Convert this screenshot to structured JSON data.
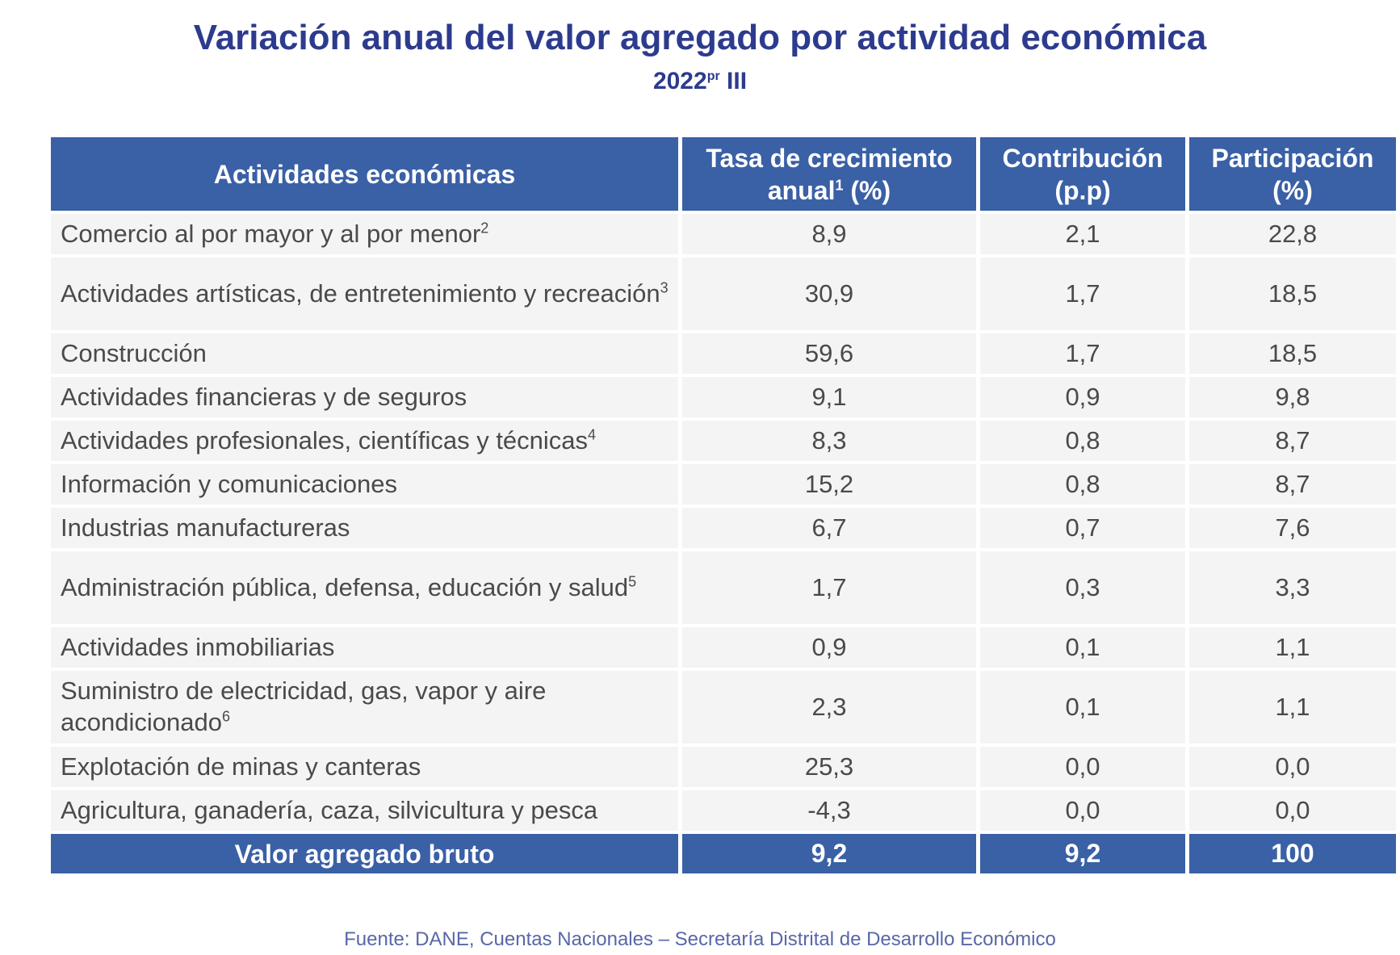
{
  "title": "Variación anual del valor agregado por actividad económica",
  "subtitle": {
    "year": "2022",
    "sup": "pr",
    "quarter": "III"
  },
  "table": {
    "headers": [
      {
        "label": "Actividades económicas"
      },
      {
        "label": "Tasa de crecimiento anual",
        "sup": "1",
        "suffix": " (%)"
      },
      {
        "label": "Contribución (p.p)"
      },
      {
        "label": "Participación (%)"
      }
    ],
    "rows": [
      {
        "activity": "Comercio al por mayor y al por menor",
        "note": "2",
        "growth": "8,9",
        "contribution": "2,1",
        "share": "22,8"
      },
      {
        "activity": "Actividades artísticas, de entretenimiento y recreación",
        "note": "3",
        "growth": "30,9",
        "contribution": "1,7",
        "share": "18,5"
      },
      {
        "activity": "Construcción",
        "note": "",
        "growth": "59,6",
        "contribution": "1,7",
        "share": "18,5"
      },
      {
        "activity": "Actividades financieras y de seguros",
        "note": "",
        "growth": "9,1",
        "contribution": "0,9",
        "share": "9,8"
      },
      {
        "activity": "Actividades profesionales, científicas y técnicas",
        "note": "4",
        "growth": "8,3",
        "contribution": "0,8",
        "share": "8,7"
      },
      {
        "activity": "Información y comunicaciones",
        "note": "",
        "growth": "15,2",
        "contribution": "0,8",
        "share": "8,7"
      },
      {
        "activity": "Industrias manufactureras",
        "note": "",
        "growth": "6,7",
        "contribution": "0,7",
        "share": "7,6"
      },
      {
        "activity": "Administración pública, defensa, educación y salud",
        "note": "5",
        "growth": "1,7",
        "contribution": "0,3",
        "share": "3,3"
      },
      {
        "activity": "Actividades inmobiliarias",
        "note": "",
        "growth": "0,9",
        "contribution": "0,1",
        "share": "1,1"
      },
      {
        "activity": "Suministro de electricidad, gas, vapor y aire acondicionado",
        "note": "6",
        "growth": "2,3",
        "contribution": "0,1",
        "share": "1,1"
      },
      {
        "activity": "Explotación de minas y canteras",
        "note": "",
        "growth": "25,3",
        "contribution": "0,0",
        "share": "0,0"
      },
      {
        "activity": "Agricultura, ganadería, caza, silvicultura y pesca",
        "note": "",
        "growth": "-4,3",
        "contribution": "0,0",
        "share": "0,0"
      }
    ],
    "total": {
      "activity": "Valor agregado bruto",
      "growth": "9,2",
      "contribution": "9,2",
      "share": "100"
    }
  },
  "footer": "Fuente: DANE, Cuentas Nacionales – Secretaría Distrital de Desarrollo Económico",
  "colors": {
    "header_bg": "#3a60a6",
    "title": "#2d3b8e",
    "row_bg": "#f4f4f4"
  }
}
